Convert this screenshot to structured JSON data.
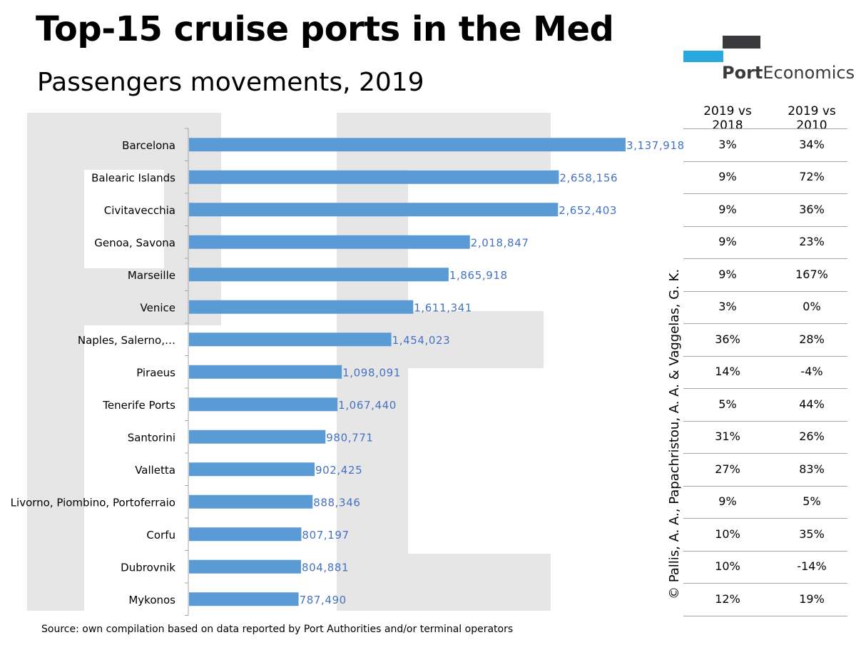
{
  "header": {
    "title": "Top-15 cruise ports in the Med",
    "subtitle": "Passengers movements, 2019"
  },
  "logo": {
    "brand_bold": "Port",
    "brand_rest": "Economics"
  },
  "table": {
    "columns": [
      "2019 vs 2018",
      "2019 vs 2010"
    ],
    "rows": [
      [
        "3%",
        "34%"
      ],
      [
        "9%",
        "72%"
      ],
      [
        "9%",
        "36%"
      ],
      [
        "9%",
        "23%"
      ],
      [
        "9%",
        "167%"
      ],
      [
        "3%",
        "0%"
      ],
      [
        "36%",
        "28%"
      ],
      [
        "14%",
        "-4%"
      ],
      [
        "5%",
        "44%"
      ],
      [
        "31%",
        "26%"
      ],
      [
        "27%",
        "83%"
      ],
      [
        "9%",
        "5%"
      ],
      [
        "10%",
        "35%"
      ],
      [
        "10%",
        "-14%"
      ],
      [
        "12%",
        "19%"
      ]
    ]
  },
  "copyright": "© Pallis, A. A., Papachristou, A. A. & Vaggelas, G. K.",
  "source": "Source: own compilation based on data reported by Port Authorities and/or terminal operators",
  "colors": {
    "bar": "#5b9bd5",
    "label": "#4472c4",
    "watermark": "#e6e6e6",
    "logo_blue": "#29a8e0",
    "logo_dark": "#3a3a3c"
  },
  "chart_data": {
    "type": "bar",
    "orientation": "horizontal",
    "categories": [
      "Barcelona",
      "Balearic Islands",
      "Civitavecchia",
      "Genoa, Savona",
      "Marseille",
      "Venice",
      "Naples, Salerno,…",
      "Piraeus",
      "Tenerife Ports",
      "Santorini",
      "Valletta",
      "Livorno, Piombino, Portoferraio",
      "Corfu",
      "Dubrovnik",
      "Mykonos"
    ],
    "values": [
      3137918,
      2658156,
      2652403,
      2018847,
      1865918,
      1611341,
      1454023,
      1098091,
      1067440,
      980771,
      902425,
      888346,
      807197,
      804881,
      787490
    ],
    "data_labels": [
      "3,137,918",
      "2,658,156",
      "2,652,403",
      "2,018,847",
      "1,865,918",
      "1,611,341",
      "1,454,023",
      "1,098,091",
      "1,067,440",
      "980,771",
      "902,425",
      "888,346",
      "807,197",
      "804,881",
      "787,490"
    ],
    "grid": false
  }
}
